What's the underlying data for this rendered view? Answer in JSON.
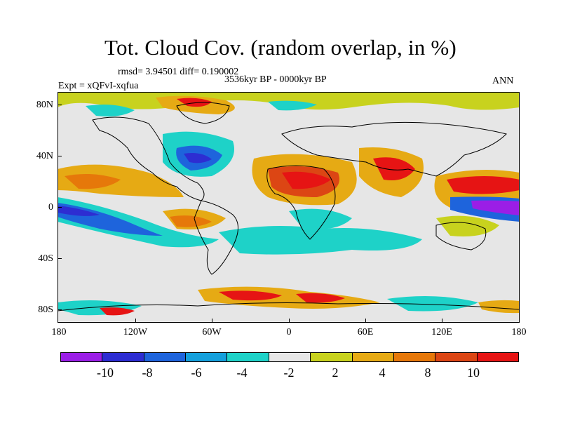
{
  "title": "Tot. Cloud Cov. (random overlap, in %)",
  "stats": "rmsd= 3.94501 diff= 0.190002",
  "experiment": "Expt = xQFvI-xqfua",
  "period": "3536kyr BP - 0000kyr BP",
  "season": "ANN",
  "y_ticks": [
    "80N",
    "40N",
    "0",
    "40S",
    "80S"
  ],
  "x_ticks": [
    "180",
    "120W",
    "60W",
    "0",
    "60E",
    "120E",
    "180"
  ],
  "colorbar": {
    "colors": [
      "#9b1ee6",
      "#2d2dd2",
      "#1e64dc",
      "#14a0dc",
      "#1ed2c8",
      "#e6e6e6",
      "#c8d21e",
      "#e6aa14",
      "#e6780a",
      "#dc4614",
      "#e61414"
    ],
    "labels": [
      "-10",
      "-8",
      "-6",
      "-4",
      "-2",
      "2",
      "4",
      "8",
      "10"
    ]
  },
  "map": {
    "lon_range": [
      -180,
      180
    ],
    "lat_range": [
      -90,
      90
    ],
    "background_color": "#e6e6e6"
  }
}
